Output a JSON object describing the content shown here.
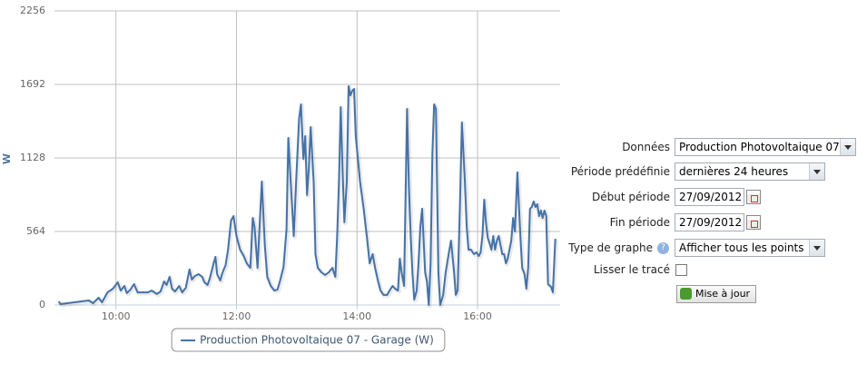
{
  "chart_data": {
    "type": "line",
    "ylabel": "W",
    "x": [
      9.05,
      9.08,
      9.55,
      9.62,
      9.71,
      9.77,
      9.86,
      9.95,
      10.03,
      10.08,
      10.14,
      10.18,
      10.24,
      10.3,
      10.36,
      10.44,
      10.53,
      10.59,
      10.68,
      10.74,
      10.8,
      10.84,
      10.89,
      10.93,
      10.98,
      11.05,
      11.1,
      11.16,
      11.22,
      11.26,
      11.31,
      11.37,
      11.43,
      11.47,
      11.52,
      11.56,
      11.62,
      11.65,
      11.68,
      11.73,
      11.77,
      11.82,
      11.86,
      11.91,
      11.95,
      12.0,
      12.06,
      12.12,
      12.17,
      12.23,
      12.27,
      12.3,
      12.35,
      12.39,
      12.42,
      12.47,
      12.51,
      12.57,
      12.63,
      12.68,
      12.72,
      12.78,
      12.83,
      12.86,
      12.9,
      12.95,
      12.99,
      13.04,
      13.07,
      13.11,
      13.14,
      13.17,
      13.2,
      13.23,
      13.28,
      13.31,
      13.35,
      13.41,
      13.47,
      13.53,
      13.59,
      13.64,
      13.67,
      13.7,
      13.73,
      13.76,
      13.79,
      13.83,
      13.86,
      13.89,
      13.92,
      13.95,
      13.98,
      14.05,
      14.11,
      14.17,
      14.21,
      14.26,
      14.3,
      14.35,
      14.39,
      14.44,
      14.5,
      14.54,
      14.59,
      14.63,
      14.68,
      14.71,
      14.74,
      14.78,
      14.83,
      14.86,
      14.89,
      14.92,
      14.95,
      14.99,
      15.02,
      15.05,
      15.08,
      15.13,
      15.16,
      15.19,
      15.22,
      15.25,
      15.28,
      15.31,
      15.35,
      15.38,
      15.43,
      15.47,
      15.52,
      15.56,
      15.61,
      15.64,
      15.67,
      15.71,
      15.74,
      15.79,
      15.82,
      15.85,
      15.89,
      15.94,
      15.98,
      16.02,
      16.05,
      16.08,
      16.11,
      16.14,
      16.17,
      16.2,
      16.23,
      16.26,
      16.29,
      16.32,
      16.35,
      16.38,
      16.41,
      16.44,
      16.47,
      16.5,
      16.53,
      16.56,
      16.59,
      16.62,
      16.66,
      16.71,
      16.74,
      16.78,
      16.81,
      16.84,
      16.87,
      16.9,
      16.93,
      16.96,
      16.99,
      17.02,
      17.05,
      17.08,
      17.11,
      17.14,
      17.17,
      17.22,
      17.25,
      17.29
    ],
    "series": [
      {
        "name": "Production Photovoltaique 07 - Garage (W)",
        "color": "#4572a7",
        "values": [
          28,
          7,
          35,
          14,
          56,
          21,
          97,
          125,
          174,
          111,
          146,
          91,
          118,
          160,
          97,
          97,
          97,
          111,
          84,
          104,
          181,
          153,
          216,
          125,
          104,
          146,
          97,
          132,
          272,
          195,
          223,
          237,
          216,
          174,
          153,
          209,
          320,
          369,
          237,
          188,
          251,
          306,
          425,
          648,
          682,
          529,
          425,
          376,
          320,
          285,
          668,
          599,
          285,
          668,
          947,
          460,
          216,
          146,
          111,
          118,
          181,
          292,
          578,
          1281,
          947,
          529,
          947,
          1434,
          1539,
          1121,
          1295,
          843,
          1051,
          1365,
          947,
          390,
          285,
          251,
          230,
          251,
          285,
          216,
          529,
          947,
          1518,
          1051,
          634,
          947,
          1678,
          1608,
          1643,
          1657,
          1295,
          947,
          738,
          494,
          320,
          390,
          285,
          181,
          111,
          77,
          77,
          111,
          146,
          125,
          111,
          355,
          251,
          146,
          1504,
          912,
          529,
          251,
          42,
          111,
          320,
          599,
          738,
          251,
          181,
          0,
          320,
          1156,
          1539,
          1504,
          251,
          0,
          77,
          251,
          390,
          494,
          251,
          77,
          111,
          808,
          1400,
          947,
          599,
          425,
          425,
          390,
          404,
          376,
          404,
          529,
          808,
          634,
          515,
          473,
          425,
          529,
          425,
          494,
          529,
          460,
          390,
          390,
          320,
          355,
          425,
          494,
          668,
          564,
          1017,
          529,
          285,
          237,
          125,
          285,
          738,
          752,
          794,
          752,
          773,
          682,
          724,
          668,
          724,
          682,
          160,
          139,
          97,
          508
        ]
      }
    ],
    "xlim": [
      8.98,
      17.37
    ],
    "xticks": [
      {
        "value": 10,
        "label": "10:00"
      },
      {
        "value": 12,
        "label": "12:00"
      },
      {
        "value": 14,
        "label": "14:00"
      },
      {
        "value": 16,
        "label": "16:00"
      }
    ],
    "ylim": [
      0,
      2256
    ],
    "yticks": [
      0,
      564,
      1128,
      1692,
      2256
    ],
    "grid": true,
    "legend": "bottom"
  },
  "form": {
    "fields": [
      {
        "label": "Données",
        "value": "Production Photovoltaique 07 -"
      },
      {
        "label": "Période prédéfinie",
        "value": "dernières 24 heures"
      },
      {
        "label": "Début période",
        "value": "27/09/2012"
      },
      {
        "label": "Fin période",
        "value": "27/09/2012"
      },
      {
        "label": "Type de graphe",
        "value": "Afficher tous les points"
      },
      {
        "label": "Lisser le tracé"
      }
    ],
    "button": "Mise à jour"
  }
}
